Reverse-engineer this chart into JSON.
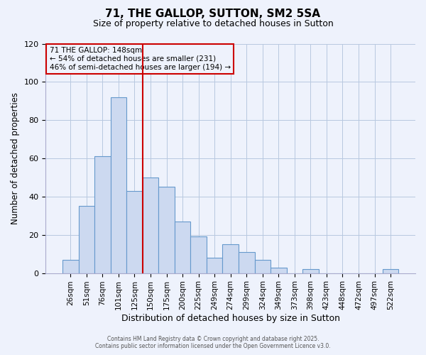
{
  "title": "71, THE GALLOP, SUTTON, SM2 5SA",
  "subtitle": "Size of property relative to detached houses in Sutton",
  "xlabel": "Distribution of detached houses by size in Sutton",
  "ylabel": "Number of detached properties",
  "bar_labels": [
    "26sqm",
    "51sqm",
    "76sqm",
    "101sqm",
    "125sqm",
    "150sqm",
    "175sqm",
    "200sqm",
    "225sqm",
    "249sqm",
    "274sqm",
    "299sqm",
    "324sqm",
    "349sqm",
    "373sqm",
    "398sqm",
    "423sqm",
    "448sqm",
    "472sqm",
    "497sqm",
    "522sqm"
  ],
  "bar_values": [
    7,
    35,
    61,
    92,
    43,
    50,
    45,
    27,
    19,
    8,
    15,
    11,
    7,
    3,
    0,
    2,
    0,
    0,
    0,
    0,
    2
  ],
  "bar_color": "#ccd9f0",
  "bar_edge_color": "#6699cc",
  "vline_index": 4.5,
  "vline_color": "#cc0000",
  "ylim": [
    0,
    120
  ],
  "yticks": [
    0,
    20,
    40,
    60,
    80,
    100,
    120
  ],
  "annotation_title": "71 THE GALLOP: 148sqm",
  "annotation_line1": "← 54% of detached houses are smaller (231)",
  "annotation_line2": "46% of semi-detached houses are larger (194) →",
  "annotation_box_color": "#cc0000",
  "footer1": "Contains HM Land Registry data © Crown copyright and database right 2025.",
  "footer2": "Contains public sector information licensed under the Open Government Licence v3.0.",
  "background_color": "#eef2fc",
  "grid_color": "#b8c8e0"
}
